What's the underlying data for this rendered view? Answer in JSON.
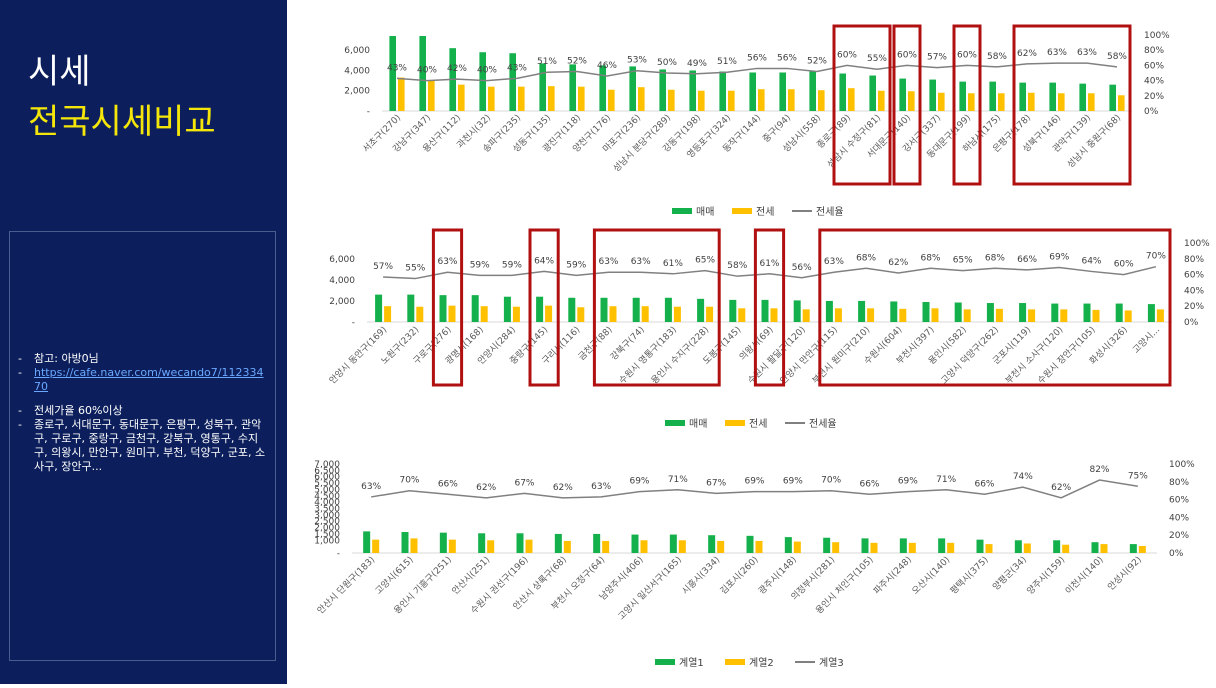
{
  "slide": {
    "title": "시세",
    "subtitle": "전국시세비교",
    "notes": {
      "ref_label": "참고: 아방0님",
      "ref_link": "https://cafe.naver.com/wecando7/11233470",
      "bullet2": "전세가율 60%이상",
      "bullet3": "종로구, 서대문구, 동대문구, 은평구, 성북구, 관악구, 구로구, 중랑구, 금천구, 강북구, 영통구, 수지구, 의왕시, 만안구, 원미구, 부천, 덕양구, 군포, 소사구, 장안구..."
    }
  },
  "colors": {
    "sale": "#13b04b",
    "jeonse": "#ffc000",
    "ratio": "#808080",
    "highlight": "#b01010",
    "panel": "#0c1f5c",
    "subtitle": "#f5e60a"
  },
  "chart_data": [
    {
      "type": "bar",
      "categories": [
        "서초구(270)",
        "강남구(347)",
        "용산구(112)",
        "과천시(32)",
        "송파구(235)",
        "성동구(135)",
        "광진구(118)",
        "양천구(176)",
        "마포구(236)",
        "성남시 분당구(289)",
        "강동구(198)",
        "영등포구(324)",
        "동작구(144)",
        "중구(94)",
        "성남시(558)",
        "종로구(89)",
        "성남시 수정구(81)",
        "서대문구(140)",
        "강서구(337)",
        "동대문구(199)",
        "하남시(175)",
        "은평구(178)",
        "성북구(146)",
        "관악구(139)",
        "성남시 중원구(68)"
      ],
      "series": [
        {
          "name": "매매",
          "values": [
            7400,
            7400,
            6200,
            5800,
            5700,
            4700,
            4600,
            4500,
            4400,
            4100,
            4000,
            3900,
            3800,
            3800,
            3900,
            3700,
            3500,
            3200,
            3100,
            2900,
            2900,
            2800,
            2800,
            2700,
            2600
          ]
        },
        {
          "name": "전세",
          "values": [
            3300,
            3000,
            2600,
            2400,
            2400,
            2450,
            2400,
            2100,
            2350,
            2100,
            2000,
            2000,
            2150,
            2150,
            2050,
            2250,
            2000,
            1950,
            1800,
            1750,
            1750,
            1800,
            1750,
            1750,
            1550
          ]
        },
        {
          "name": "전세율",
          "values": [
            43,
            40,
            42,
            40,
            43,
            51,
            52,
            46,
            53,
            50,
            49,
            51,
            56,
            56,
            52,
            60,
            55,
            60,
            57,
            60,
            58,
            62,
            63,
            63,
            58
          ]
        }
      ],
      "data_labels": [
        "43%",
        "40%",
        "42%",
        "40%",
        "43%",
        "51%",
        "52%",
        "46%",
        "53%",
        "50%",
        "49%",
        "51%",
        "56%",
        "56%",
        "52%",
        "60%",
        "55%",
        "60%",
        "57%",
        "60%",
        "58%",
        "62%",
        "63%",
        "63%",
        "58%"
      ],
      "y_ticks": [
        "-",
        "2,000",
        "4,000",
        "6,000"
      ],
      "y2_ticks": [
        "0%",
        "20%",
        "40%",
        "60%",
        "80%",
        "100%"
      ],
      "ylim": [
        0,
        7500
      ],
      "y2lim": [
        0,
        100
      ],
      "legend": [
        "매매",
        "전세",
        "전세율"
      ],
      "legend_position": "bottom",
      "highlight_groups": [
        [
          15,
          16
        ],
        [
          17,
          17
        ],
        [
          19,
          19
        ],
        [
          21,
          24
        ]
      ]
    },
    {
      "type": "bar",
      "categories": [
        "안양시 동안구(169)",
        "노원구(232)",
        "구로구(276)",
        "광명시(168)",
        "안양시(284)",
        "중랑구(145)",
        "구리시(116)",
        "금천구(88)",
        "강북구(74)",
        "수원시 영통구(183)",
        "용인시 수지구(228)",
        "도봉구(145)",
        "의왕시(69)",
        "수원시 팔달구(120)",
        "안양시 만안구(115)",
        "부천시 원미구(210)",
        "수원시(604)",
        "부천시(397)",
        "용인시(582)",
        "고양시 덕양구(262)",
        "군포시(119)",
        "부천시 소사구(120)",
        "수원시 장안구(105)",
        "화성시(326)",
        "고양시..."
      ],
      "series": [
        {
          "name": "매매",
          "values": [
            2600,
            2600,
            2550,
            2550,
            2400,
            2400,
            2300,
            2300,
            2300,
            2300,
            2200,
            2100,
            2100,
            2050,
            2000,
            2000,
            1950,
            1900,
            1850,
            1800,
            1800,
            1750,
            1750,
            1750,
            1700
          ]
        },
        {
          "name": "전세",
          "values": [
            1500,
            1450,
            1550,
            1500,
            1450,
            1550,
            1400,
            1500,
            1500,
            1450,
            1450,
            1300,
            1300,
            1200,
            1300,
            1300,
            1250,
            1300,
            1200,
            1250,
            1200,
            1200,
            1150,
            1100,
            1200
          ]
        },
        {
          "name": "전세율",
          "values": [
            57,
            55,
            63,
            59,
            59,
            64,
            59,
            63,
            63,
            61,
            65,
            58,
            61,
            56,
            63,
            68,
            62,
            68,
            65,
            68,
            66,
            69,
            64,
            60,
            70
          ]
        }
      ],
      "data_labels": [
        "57%",
        "55%",
        "63%",
        "59%",
        "59%",
        "64%",
        "59%",
        "63%",
        "63%",
        "61%",
        "65%",
        "58%",
        "61%",
        "56%",
        "63%",
        "68%",
        "62%",
        "68%",
        "65%",
        "68%",
        "66%",
        "69%",
        "64%",
        "60%",
        "70%"
      ],
      "y_ticks": [
        "-",
        "2,000",
        "4,000",
        "6,000"
      ],
      "y2_ticks": [
        "0%",
        "20%",
        "40%",
        "60%",
        "80%",
        "100%"
      ],
      "ylim": [
        0,
        7500
      ],
      "y2lim": [
        0,
        100
      ],
      "legend": [
        "매매",
        "전세",
        "전세율"
      ],
      "legend_position": "bottom",
      "highlight_groups": [
        [
          2,
          2
        ],
        [
          5,
          5
        ],
        [
          7,
          10
        ],
        [
          12,
          12
        ],
        [
          14,
          24
        ]
      ]
    },
    {
      "type": "bar",
      "categories": [
        "안산시 단원구(183)",
        "고양시(615)",
        "용인시 기흥구(251)",
        "안산시(251)",
        "수원시 권선구(196)",
        "안산시 상록구(68)",
        "부천시 오정구(64)",
        "남양주시(406)",
        "고양시 일산서구(165)",
        "시흥시(334)",
        "김포시(260)",
        "광주시(148)",
        "의정부시(281)",
        "용인시 처인구(105)",
        "파주시(248)",
        "오산시(140)",
        "평택시(375)",
        "양평군(34)",
        "양주시(159)",
        "이천시(140)",
        "안성시(92)"
      ],
      "series": [
        {
          "name": "계열1",
          "values": [
            1700,
            1650,
            1600,
            1550,
            1550,
            1500,
            1500,
            1450,
            1450,
            1400,
            1350,
            1250,
            1200,
            1150,
            1150,
            1150,
            1050,
            1000,
            1000,
            850,
            700
          ]
        },
        {
          "name": "계열2",
          "values": [
            1050,
            1150,
            1050,
            1000,
            1050,
            950,
            950,
            1000,
            1000,
            950,
            950,
            900,
            850,
            800,
            800,
            800,
            700,
            750,
            650,
            700,
            550
          ]
        },
        {
          "name": "계열3",
          "values": [
            63,
            70,
            66,
            62,
            67,
            62,
            63,
            69,
            71,
            67,
            69,
            69,
            70,
            66,
            69,
            71,
            66,
            74,
            62,
            82,
            75
          ]
        }
      ],
      "data_labels": [
        "63%",
        "70%",
        "66%",
        "62%",
        "67%",
        "62%",
        "63%",
        "69%",
        "71%",
        "67%",
        "69%",
        "69%",
        "70%",
        "66%",
        "69%",
        "71%",
        "66%",
        "74%",
        "62%",
        "82%",
        "75%"
      ],
      "y_ticks": [
        "-",
        "1,000",
        "1,500",
        "2,000",
        "2,500",
        "3,000",
        "3,500",
        "4,000",
        "4,500",
        "5,000",
        "5,500",
        "6,000",
        "6,500",
        "7,000"
      ],
      "y2_ticks": [
        "0%",
        "20%",
        "40%",
        "60%",
        "80%",
        "100%"
      ],
      "ylim": [
        0,
        7000
      ],
      "y2lim": [
        0,
        100
      ],
      "legend": [
        "계열1",
        "계열2",
        "계열3"
      ],
      "legend_position": "bottom",
      "highlight_groups": []
    }
  ]
}
